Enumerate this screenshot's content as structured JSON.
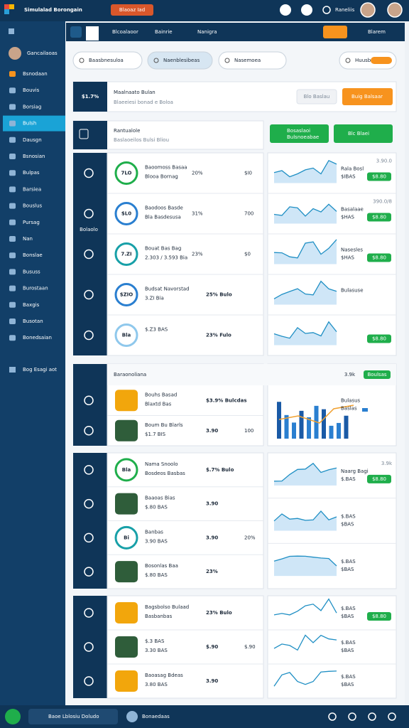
{
  "app": {
    "title": "Simulalad Borongain",
    "badge": "Blaoaz Iad",
    "user": "Raneliis"
  },
  "sidebar": {
    "profile": "Gancailaoas",
    "items": [
      "Bsnodaan",
      "Bouvis",
      "Borsiag",
      "Bulsh",
      "Dausgn",
      "Bsnosian",
      "Bulpas",
      "Barsiea",
      "Bouslus",
      "Pursag",
      "Nan",
      "Bonslae",
      "Bususs",
      "Burostaan",
      "Baxgis",
      "Busotan",
      "Bonedsaian"
    ],
    "footer": "Bog Esagi aot"
  },
  "tabs": [
    "Blcoalaoor",
    "Bainrie",
    "Nanigra"
  ],
  "tab_right": "Blarem",
  "search": [
    "Baasbnesuloa",
    "Naenblesibeas",
    "Nasemoea",
    "Huusb"
  ],
  "header": {
    "stat": "$1.7%",
    "title": "Maalnaato Bulan",
    "subtitle": "Blaeeiesi bonad e Boloa",
    "chip": "Blo Baslau",
    "button": "Buig Balsaar"
  },
  "summary": {
    "title": "Rantualole",
    "subtitle": "Baslaoeilos Bulsi Bliou",
    "button1": "Bosaslaoi",
    "button1_sub": "Bulsnoeabae",
    "button2": "Blc Blaei"
  },
  "sections": [
    {
      "strip": "Bolaolo",
      "rows": [
        {
          "badge": "7LO",
          "title": "Baoomoss Basaa",
          "sub": "Blooa Bornag",
          "pct": "20%",
          "val": "$I0"
        },
        {
          "badge": "$L0",
          "title": "Baodoos Basde",
          "sub": "Bla Basdesusa",
          "pct": "31%",
          "val": "700"
        },
        {
          "badge": "7.ZI",
          "title": "Bouat Bas Bag",
          "sub": "2.303 / 3.593 Bia",
          "pct": "23%",
          "val": "$0"
        },
        {
          "badge": "$ZIO",
          "title": "Budsat Navorstad",
          "sub": "3.ZI Bia",
          "pct": "25% Bulo"
        },
        {
          "badge": "Bla",
          "title": "$.Z3 BAS",
          "pct": "23% Fulo"
        }
      ],
      "charts": [
        {
          "label": "Rala Bosl",
          "sub": "$IBAS",
          "value": "3.90.0",
          "button": "$8.80"
        },
        {
          "label": "Basalaae",
          "sub": "$HAS",
          "value": "390.0/8",
          "button": "$8.80"
        },
        {
          "label": "Nasesles",
          "sub": "$HAS",
          "button": "$8.80"
        },
        {
          "label": "Bulasuse"
        },
        {
          "button": "$8.80"
        }
      ]
    },
    {
      "title": "Baraonoliana",
      "value": "3.9k",
      "button": "Boulsas",
      "rows": [
        {
          "title": "Bouhs Basad",
          "sub": "Blaxtd Bas",
          "pct": "$3.9% Bulcdas"
        },
        {
          "title": "Boum Bu Blarls",
          "sub": "$1.7 BIS",
          "pct": "3.90",
          "val": "100"
        }
      ],
      "charts": [
        {
          "label": "Bulasus",
          "sub": "Baslas"
        }
      ]
    },
    {
      "rows": [
        {
          "badge": "Bla",
          "title": "Nama Snoolo",
          "sub": "Bosdeos Basbas",
          "pct": "$.7% Bulo"
        },
        {
          "title": "Baaoas Bias",
          "sub": "$.80 BAS",
          "pct": "3.90"
        },
        {
          "badge": "Bi",
          "title": "Banbas",
          "sub": "3.90 BAS",
          "pct": "3.90",
          "val": "20%"
        },
        {
          "title": "Bosonlas Baa",
          "sub": "$.80 BAS",
          "pct": "23%"
        }
      ],
      "charts": [
        {
          "label": "Naarg Bagi",
          "value": "3.9k",
          "sub": "$.BAS",
          "button": "$8.80"
        },
        {
          "label": "$.BAS",
          "sub": "$BAS"
        },
        {
          "label": "$.BAS",
          "sub": "$BAS"
        }
      ]
    },
    {
      "rows": [
        {
          "title": "Bagsbolso Bulaad",
          "sub": "Basbanbas",
          "pct": "23% Bulo"
        },
        {
          "title": "$.3 BAS",
          "sub": "3.30 BAS",
          "pct": "$.90",
          "val": "$.90"
        },
        {
          "title": "Baoasag Bdeas",
          "sub": "3.80 BAS",
          "pct": "3.90"
        }
      ],
      "charts": [
        {
          "label": "$.BAS",
          "sub": "$BAS",
          "button": "$8.80"
        },
        {
          "label": "$.BAS",
          "sub": "$BAS"
        },
        {
          "label": "$.BAS",
          "sub": "$BAS"
        }
      ]
    }
  ],
  "footer": {
    "input": "Baoe Lblosiu Doludo",
    "user": "Bonaedaas"
  }
}
